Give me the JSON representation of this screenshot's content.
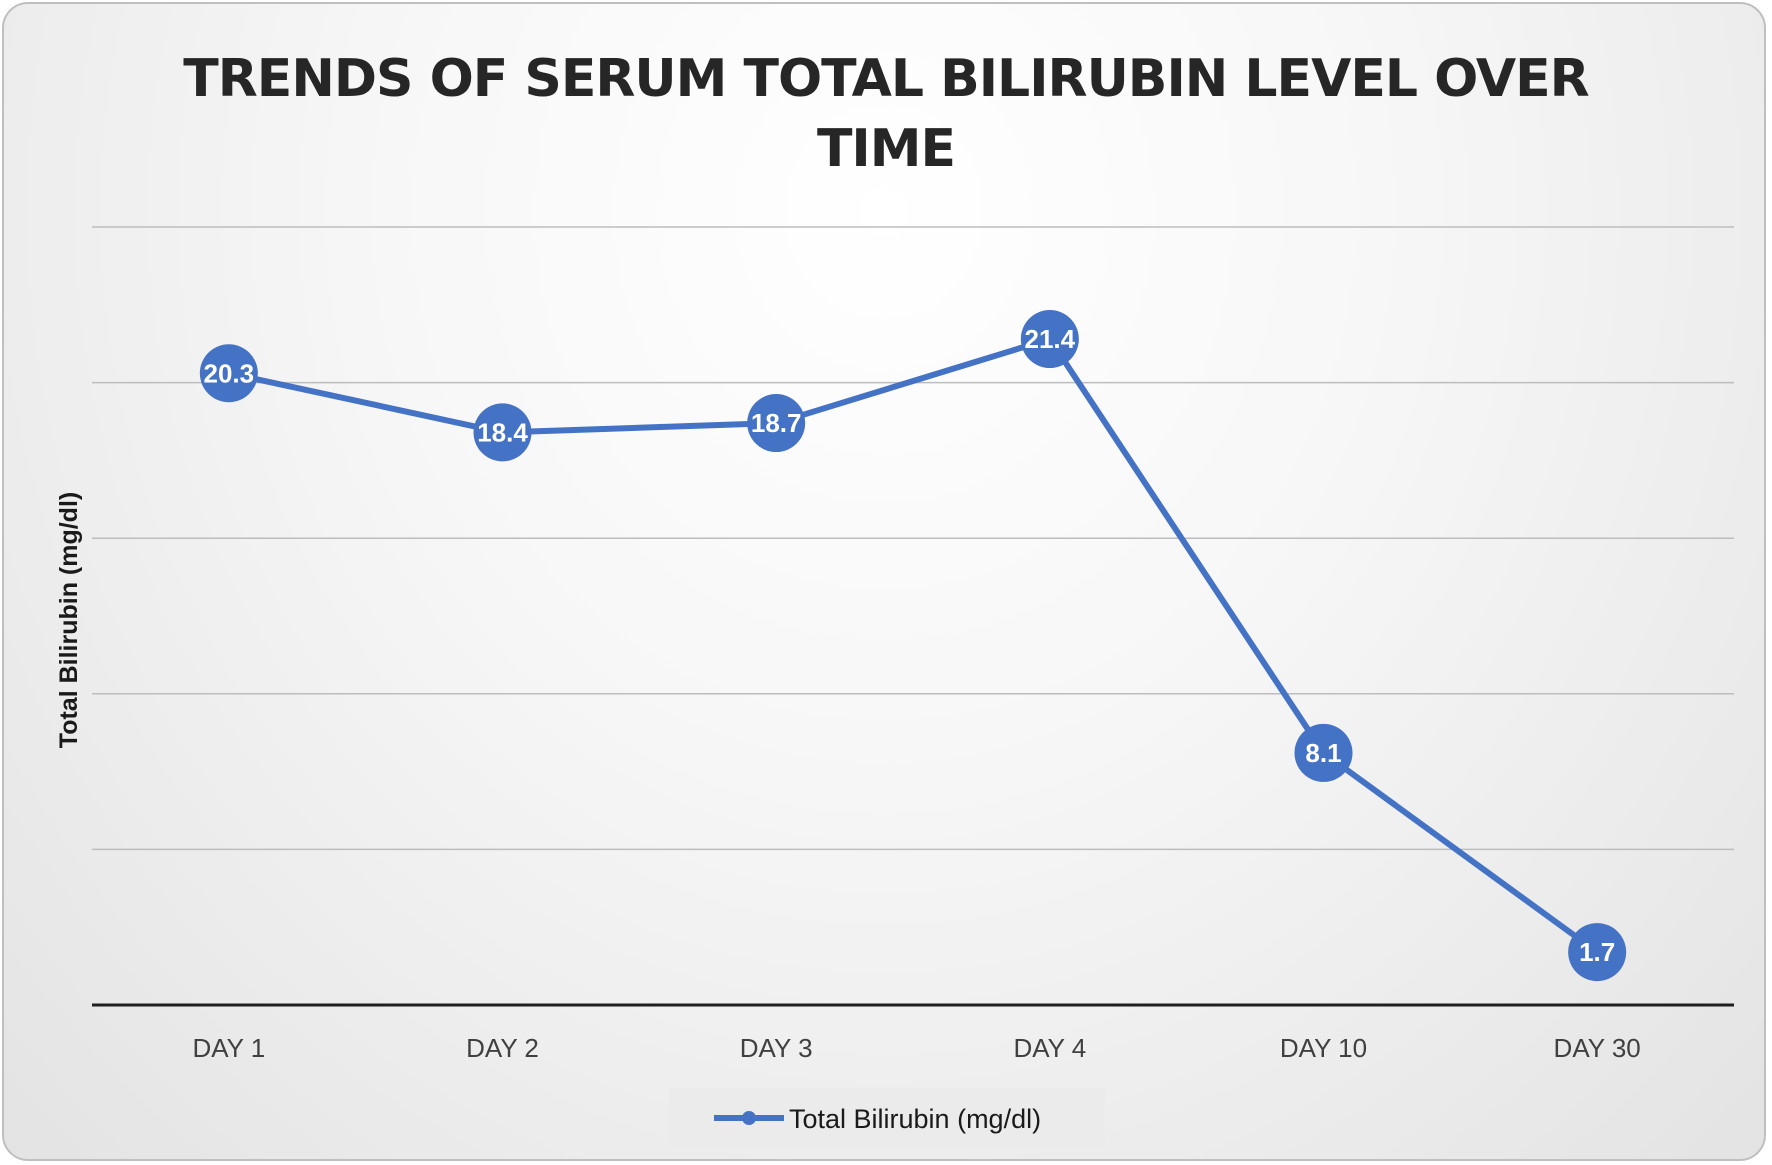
{
  "colors": {
    "series": "#4472c4"
  },
  "chart_data": {
    "type": "line",
    "title_line1": "TRENDS OF SERUM TOTAL BILIRUBIN LEVEL OVER",
    "title_line2": "TIME",
    "xlabel": "",
    "ylabel": "Total Bilirubin (mg/dl)",
    "ylim": [
      0,
      25
    ],
    "gridlines": [
      5,
      10,
      15,
      20,
      25
    ],
    "grid": true,
    "y_tick_labels_shown": false,
    "legend_position": "bottom",
    "categories": [
      "DAY 1",
      "DAY 2",
      "DAY 3",
      "DAY 4",
      "DAY 10",
      "DAY 30"
    ],
    "series": [
      {
        "name": "Total Bilirubin (mg/dl)",
        "values": [
          20.3,
          18.4,
          18.7,
          21.4,
          8.1,
          1.7
        ],
        "data_labels": [
          "20.3",
          "18.4",
          "18.7",
          "21.4",
          "8.1",
          "1.7"
        ]
      }
    ]
  }
}
